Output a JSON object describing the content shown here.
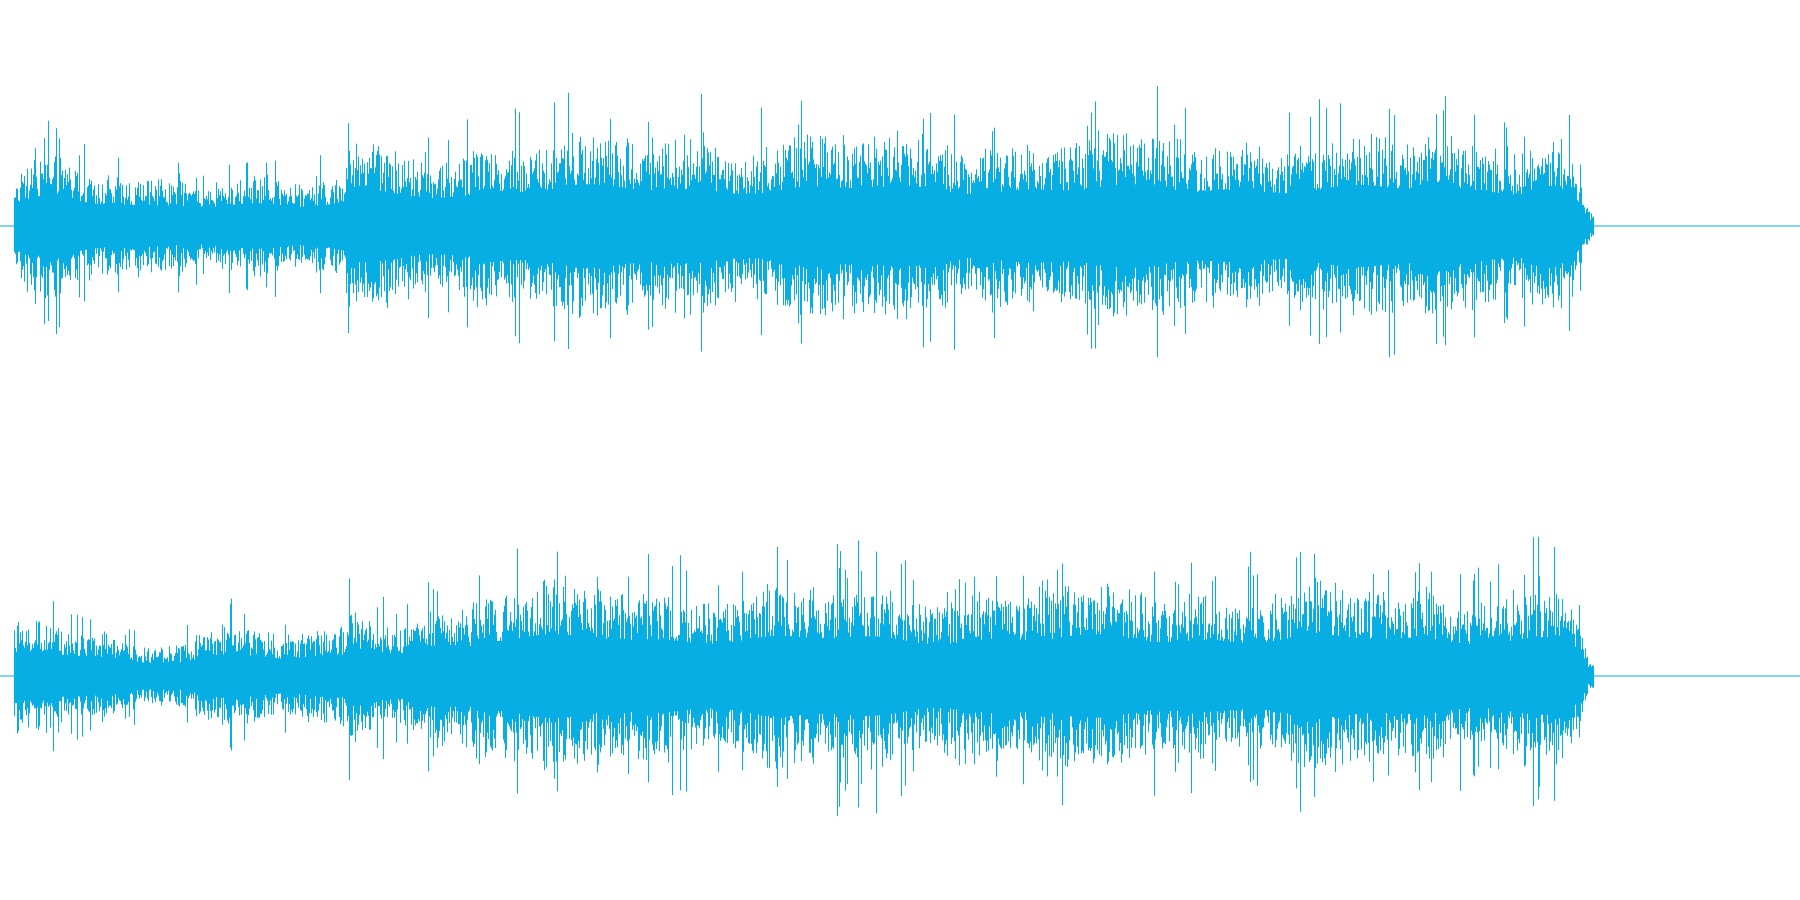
{
  "waveform": {
    "color": "#06aee3",
    "background": "#ffffff",
    "channels": [
      {
        "name": "channel-1",
        "peak": 1.0
      },
      {
        "name": "channel-2",
        "peak": 1.0
      }
    ],
    "audio_end_fraction": 0.885
  }
}
